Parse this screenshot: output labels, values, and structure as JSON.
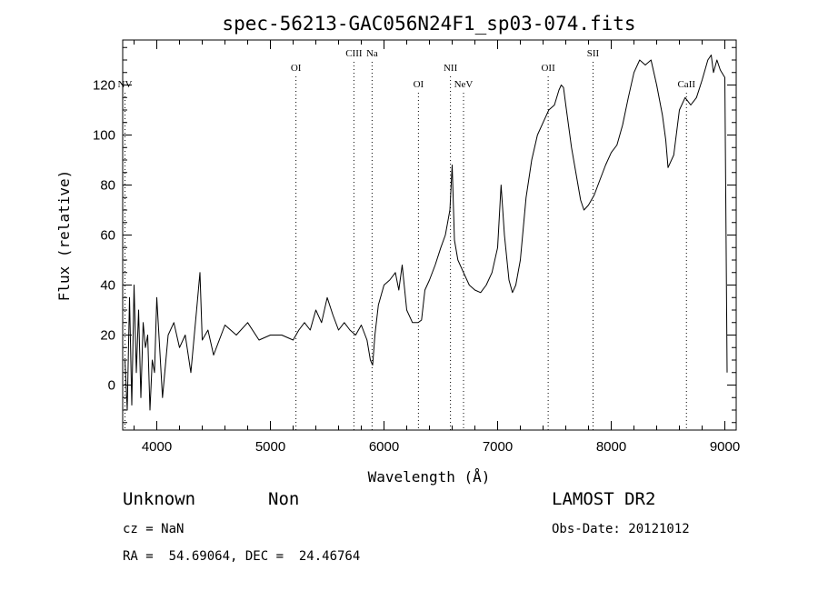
{
  "chart_data": {
    "type": "line",
    "title": "spec-56213-GAC056N24F1_sp03-074.fits",
    "xlabel": "Wavelength (Å)",
    "ylabel": "Flux (relative)",
    "xlim": [
      3700,
      9100
    ],
    "ylim": [
      -18,
      138
    ],
    "x_ticks": [
      4000,
      5000,
      6000,
      7000,
      8000,
      9000
    ],
    "x_tick_labels": [
      "4000",
      "5000",
      "6000",
      "7000",
      "8000",
      "9000"
    ],
    "y_ticks": [
      0,
      20,
      40,
      60,
      80,
      100,
      120
    ],
    "y_tick_labels": [
      "0",
      "20",
      "40",
      "60",
      "80",
      "100",
      "120"
    ],
    "grid": false,
    "series": [
      {
        "x": [
          3720,
          3740,
          3760,
          3780,
          3800,
          3820,
          3840,
          3860,
          3880,
          3900,
          3920,
          3940,
          3960,
          3980,
          4000,
          4050,
          4100,
          4150,
          4200,
          4250,
          4300,
          4350,
          4380,
          4400,
          4450,
          4500,
          4600,
          4700,
          4800,
          4900,
          5000,
          5100,
          5200,
          5250,
          5300,
          5350,
          5400,
          5450,
          5500,
          5550,
          5600,
          5650,
          5700,
          5750,
          5800,
          5850,
          5880,
          5900,
          5920,
          5950,
          6000,
          6050,
          6100,
          6130,
          6160,
          6200,
          6250,
          6300,
          6330,
          6360,
          6400,
          6450,
          6500,
          6540,
          6560,
          6580,
          6600,
          6620,
          6650,
          6700,
          6750,
          6800,
          6850,
          6900,
          6950,
          7000,
          7030,
          7060,
          7100,
          7130,
          7160,
          7200,
          7250,
          7300,
          7350,
          7400,
          7450,
          7500,
          7540,
          7560,
          7580,
          7600,
          7650,
          7700,
          7730,
          7760,
          7800,
          7850,
          7900,
          7950,
          8000,
          8050,
          8100,
          8150,
          8200,
          8250,
          8300,
          8350,
          8400,
          8450,
          8480,
          8500,
          8550,
          8600,
          8650,
          8700,
          8750,
          8800,
          8850,
          8880,
          8900,
          8930,
          8960,
          9000,
          9020
        ],
        "y": [
          10,
          -10,
          35,
          -8,
          40,
          5,
          30,
          -5,
          25,
          15,
          20,
          -10,
          10,
          5,
          35,
          -5,
          20,
          25,
          15,
          20,
          5,
          30,
          45,
          18,
          22,
          12,
          24,
          20,
          25,
          18,
          20,
          20,
          18,
          22,
          25,
          22,
          30,
          25,
          35,
          28,
          22,
          25,
          22,
          20,
          24,
          18,
          10,
          8,
          20,
          32,
          40,
          42,
          45,
          38,
          48,
          30,
          25,
          25,
          26,
          38,
          42,
          48,
          55,
          60,
          65,
          70,
          88,
          58,
          50,
          45,
          40,
          38,
          37,
          40,
          45,
          55,
          80,
          60,
          42,
          37,
          40,
          50,
          75,
          90,
          100,
          105,
          110,
          112,
          118,
          120,
          119,
          112,
          95,
          82,
          74,
          70,
          72,
          76,
          82,
          88,
          93,
          96,
          104,
          115,
          125,
          130,
          128,
          130,
          120,
          108,
          98,
          87,
          92,
          110,
          115,
          112,
          115,
          122,
          130,
          132,
          125,
          130,
          126,
          123,
          5
        ]
      }
    ],
    "emission_lines": [
      {
        "label": "NV",
        "x": 3720,
        "level": "low"
      },
      {
        "label": "OI",
        "x": 5225,
        "level": "high"
      },
      {
        "label": "CIII",
        "x": 5735,
        "level": "top"
      },
      {
        "label": "Na",
        "x": 5895,
        "level": "top"
      },
      {
        "label": "OI",
        "x": 6303,
        "level": "low"
      },
      {
        "label": "NII",
        "x": 6585,
        "level": "high"
      },
      {
        "label": "NeV",
        "x": 6700,
        "level": "low"
      },
      {
        "label": "OII",
        "x": 7445,
        "level": "high"
      },
      {
        "label": "SII",
        "x": 7840,
        "level": "top"
      },
      {
        "label": "CaII",
        "x": 8662,
        "level": "low"
      }
    ]
  },
  "info": {
    "classification": "Unknown",
    "subclass": "Non",
    "survey": "LAMOST DR2",
    "cz": "cz = NaN",
    "obs_date": "Obs-Date: 20121012",
    "coords": "RA =  54.69064, DEC =  24.46764"
  }
}
